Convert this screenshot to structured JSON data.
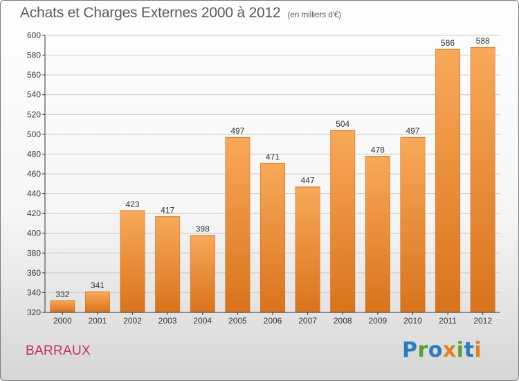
{
  "header": {
    "title": "Achats et Charges Externes 2000 à 2012",
    "unit": "(en milliers d'€)"
  },
  "commune": "BARRAUX",
  "logo": {
    "text": "Proxiti",
    "letters": [
      "P",
      "r",
      "o",
      "x",
      "i",
      "t",
      "i"
    ]
  },
  "colors": {
    "bar_light": "#f8a95a",
    "bar_dark": "#d9731c",
    "grid": "#c8c8c8",
    "axis": "#333333",
    "commune": "#c8295a"
  },
  "chart_data": {
    "type": "bar",
    "title": "Achats et Charges Externes 2000 à 2012",
    "subtitle": "(en milliers d'€)",
    "categories": [
      "2000",
      "2001",
      "2002",
      "2003",
      "2004",
      "2005",
      "2006",
      "2007",
      "2008",
      "2009",
      "2010",
      "2011",
      "2012"
    ],
    "values": [
      332,
      341,
      423,
      417,
      398,
      497,
      471,
      447,
      504,
      478,
      497,
      586,
      588
    ],
    "ylim": [
      320,
      600
    ],
    "yticks": [
      320,
      340,
      360,
      380,
      400,
      420,
      440,
      460,
      480,
      500,
      520,
      540,
      560,
      580,
      600
    ],
    "grid": true,
    "xlabel": "",
    "ylabel": ""
  }
}
